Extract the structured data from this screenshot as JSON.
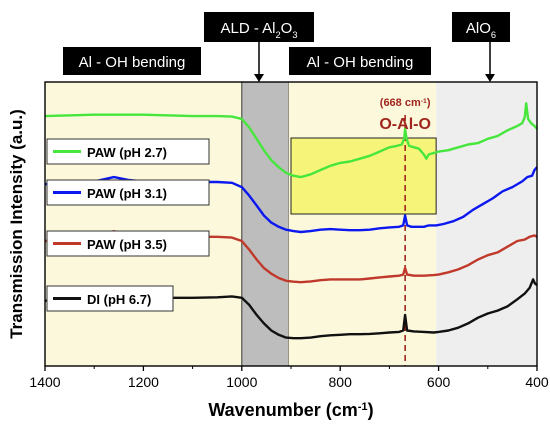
{
  "chart_data": {
    "type": "line",
    "xlabel": "Wavenumber (cm",
    "xlabel_sup": "-1",
    "xlabel_suffix": ")",
    "ylabel": "Transmission Intensity (a.u.)",
    "xlim": [
      1400,
      400
    ],
    "x_reversed": true,
    "xticks": [
      1400,
      1200,
      1000,
      800,
      600,
      400
    ],
    "grid": false,
    "legend_placement": "left",
    "regions": [
      {
        "label": "Al - OH bending",
        "from": 1400,
        "to": 1000,
        "color": "#fbf8dc"
      },
      {
        "label": "ALD - Al2O3",
        "from": 1000,
        "to": 905,
        "color": "#bdbdbd"
      },
      {
        "label": "Al - OH bending",
        "from": 905,
        "to": 605,
        "color": "#fbf8dc"
      },
      {
        "label": "AlO6",
        "from": 605,
        "to": 400,
        "color": "#eeeeee"
      }
    ],
    "highlight_box": {
      "from": 900,
      "to": 605,
      "color": "#f7f47a"
    },
    "annotations": {
      "ald_main": "ALD - Al",
      "ald_sub1": "2",
      "ald_mid": "O",
      "ald_sub2": "3",
      "alo6_main": "AlO",
      "alo6_sub": "6",
      "peak_label": "(668 cm",
      "peak_sup": "-1",
      "peak_suffix": ")",
      "peak_name": "O-Al-O",
      "peak_x": 668
    },
    "series": [
      {
        "name": "PAW (pH 2.7)",
        "color": "#46e63c",
        "points": [
          [
            1400,
            0.88
          ],
          [
            1300,
            0.885
          ],
          [
            1200,
            0.885
          ],
          [
            1100,
            0.88
          ],
          [
            1050,
            0.88
          ],
          [
            1020,
            0.878
          ],
          [
            1000,
            0.87
          ],
          [
            985,
            0.84
          ],
          [
            970,
            0.8
          ],
          [
            955,
            0.76
          ],
          [
            940,
            0.725
          ],
          [
            925,
            0.7
          ],
          [
            910,
            0.68
          ],
          [
            895,
            0.67
          ],
          [
            880,
            0.665
          ],
          [
            860,
            0.675
          ],
          [
            840,
            0.69
          ],
          [
            820,
            0.705
          ],
          [
            800,
            0.715
          ],
          [
            780,
            0.72
          ],
          [
            760,
            0.73
          ],
          [
            740,
            0.74
          ],
          [
            720,
            0.755
          ],
          [
            700,
            0.77
          ],
          [
            685,
            0.775
          ],
          [
            675,
            0.78
          ],
          [
            670,
            0.8
          ],
          [
            668,
            0.835
          ],
          [
            665,
            0.8
          ],
          [
            660,
            0.775
          ],
          [
            650,
            0.77
          ],
          [
            640,
            0.765
          ],
          [
            630,
            0.745
          ],
          [
            625,
            0.73
          ],
          [
            620,
            0.745
          ],
          [
            610,
            0.75
          ],
          [
            600,
            0.755
          ],
          [
            580,
            0.76
          ],
          [
            560,
            0.77
          ],
          [
            540,
            0.78
          ],
          [
            520,
            0.785
          ],
          [
            500,
            0.8
          ],
          [
            480,
            0.81
          ],
          [
            460,
            0.83
          ],
          [
            440,
            0.845
          ],
          [
            430,
            0.855
          ],
          [
            425,
            0.875
          ],
          [
            422,
            0.925
          ],
          [
            418,
            0.87
          ],
          [
            412,
            0.855
          ],
          [
            405,
            0.845
          ],
          [
            400,
            0.835
          ]
        ]
      },
      {
        "name": "PAW (pH 3.1)",
        "color": "#0c18f0",
        "points": [
          [
            1400,
            0.64
          ],
          [
            1350,
            0.645
          ],
          [
            1300,
            0.65
          ],
          [
            1260,
            0.665
          ],
          [
            1230,
            0.655
          ],
          [
            1200,
            0.65
          ],
          [
            1150,
            0.648
          ],
          [
            1100,
            0.648
          ],
          [
            1050,
            0.648
          ],
          [
            1020,
            0.645
          ],
          [
            1000,
            0.63
          ],
          [
            985,
            0.6
          ],
          [
            970,
            0.565
          ],
          [
            955,
            0.53
          ],
          [
            940,
            0.505
          ],
          [
            925,
            0.49
          ],
          [
            910,
            0.48
          ],
          [
            895,
            0.475
          ],
          [
            880,
            0.472
          ],
          [
            860,
            0.475
          ],
          [
            840,
            0.48
          ],
          [
            820,
            0.482
          ],
          [
            800,
            0.48
          ],
          [
            780,
            0.478
          ],
          [
            760,
            0.478
          ],
          [
            740,
            0.48
          ],
          [
            720,
            0.485
          ],
          [
            700,
            0.488
          ],
          [
            680,
            0.49
          ],
          [
            672,
            0.495
          ],
          [
            668,
            0.53
          ],
          [
            664,
            0.495
          ],
          [
            655,
            0.49
          ],
          [
            640,
            0.49
          ],
          [
            630,
            0.49
          ],
          [
            620,
            0.495
          ],
          [
            605,
            0.495
          ],
          [
            590,
            0.5
          ],
          [
            570,
            0.51
          ],
          [
            550,
            0.525
          ],
          [
            530,
            0.55
          ],
          [
            510,
            0.57
          ],
          [
            490,
            0.59
          ],
          [
            470,
            0.615
          ],
          [
            450,
            0.63
          ],
          [
            430,
            0.65
          ],
          [
            420,
            0.665
          ],
          [
            410,
            0.67
          ],
          [
            405,
            0.69
          ],
          [
            400,
            0.7
          ]
        ]
      },
      {
        "name": "PAW (pH 3.5)",
        "color": "#c0392b",
        "points": [
          [
            1400,
            0.44
          ],
          [
            1350,
            0.445
          ],
          [
            1300,
            0.455
          ],
          [
            1260,
            0.475
          ],
          [
            1230,
            0.46
          ],
          [
            1200,
            0.455
          ],
          [
            1150,
            0.455
          ],
          [
            1100,
            0.455
          ],
          [
            1050,
            0.455
          ],
          [
            1020,
            0.452
          ],
          [
            1000,
            0.44
          ],
          [
            985,
            0.41
          ],
          [
            970,
            0.375
          ],
          [
            955,
            0.345
          ],
          [
            940,
            0.325
          ],
          [
            925,
            0.31
          ],
          [
            910,
            0.3
          ],
          [
            895,
            0.297
          ],
          [
            880,
            0.295
          ],
          [
            860,
            0.298
          ],
          [
            840,
            0.302
          ],
          [
            820,
            0.305
          ],
          [
            800,
            0.305
          ],
          [
            780,
            0.305
          ],
          [
            760,
            0.305
          ],
          [
            740,
            0.308
          ],
          [
            720,
            0.312
          ],
          [
            700,
            0.315
          ],
          [
            680,
            0.318
          ],
          [
            672,
            0.322
          ],
          [
            668,
            0.345
          ],
          [
            664,
            0.322
          ],
          [
            650,
            0.318
          ],
          [
            630,
            0.318
          ],
          [
            610,
            0.32
          ],
          [
            600,
            0.322
          ],
          [
            580,
            0.33
          ],
          [
            560,
            0.34
          ],
          [
            540,
            0.355
          ],
          [
            520,
            0.375
          ],
          [
            500,
            0.39
          ],
          [
            480,
            0.4
          ],
          [
            460,
            0.42
          ],
          [
            440,
            0.44
          ],
          [
            425,
            0.445
          ],
          [
            415,
            0.455
          ],
          [
            405,
            0.46
          ],
          [
            400,
            0.455
          ]
        ]
      },
      {
        "name": "DI (pH 6.7)",
        "color": "#111111",
        "points": [
          [
            1400,
            0.23
          ],
          [
            1350,
            0.232
          ],
          [
            1300,
            0.238
          ],
          [
            1260,
            0.255
          ],
          [
            1230,
            0.245
          ],
          [
            1200,
            0.24
          ],
          [
            1150,
            0.24
          ],
          [
            1100,
            0.24
          ],
          [
            1050,
            0.242
          ],
          [
            1020,
            0.245
          ],
          [
            1000,
            0.24
          ],
          [
            985,
            0.215
          ],
          [
            970,
            0.18
          ],
          [
            955,
            0.15
          ],
          [
            940,
            0.125
          ],
          [
            925,
            0.11
          ],
          [
            910,
            0.1
          ],
          [
            895,
            0.098
          ],
          [
            880,
            0.098
          ],
          [
            860,
            0.1
          ],
          [
            840,
            0.105
          ],
          [
            820,
            0.108
          ],
          [
            800,
            0.11
          ],
          [
            780,
            0.112
          ],
          [
            760,
            0.112
          ],
          [
            740,
            0.113
          ],
          [
            720,
            0.115
          ],
          [
            700,
            0.118
          ],
          [
            680,
            0.12
          ],
          [
            672,
            0.125
          ],
          [
            668,
            0.18
          ],
          [
            664,
            0.125
          ],
          [
            650,
            0.122
          ],
          [
            630,
            0.12
          ],
          [
            610,
            0.118
          ],
          [
            600,
            0.12
          ],
          [
            580,
            0.125
          ],
          [
            560,
            0.135
          ],
          [
            540,
            0.15
          ],
          [
            520,
            0.17
          ],
          [
            500,
            0.185
          ],
          [
            480,
            0.195
          ],
          [
            460,
            0.21
          ],
          [
            440,
            0.235
          ],
          [
            425,
            0.255
          ],
          [
            415,
            0.275
          ],
          [
            408,
            0.305
          ],
          [
            404,
            0.29
          ],
          [
            400,
            0.285
          ]
        ]
      }
    ]
  }
}
